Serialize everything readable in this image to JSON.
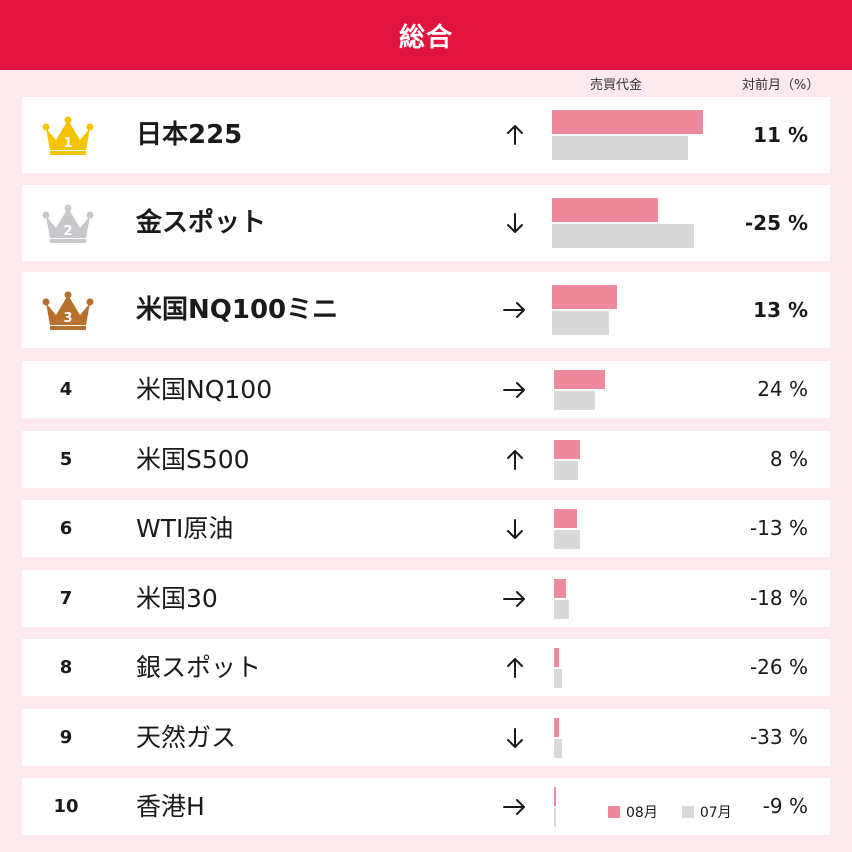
{
  "header": {
    "title": "総合"
  },
  "columns": {
    "volume": "売買代金",
    "mom": "対前月（%）"
  },
  "legend": {
    "current": "08月",
    "previous": "07月"
  },
  "colors": {
    "header": "#e0143c",
    "current_bar": "#ef8a9e",
    "previous_bar": "#d9d9d9",
    "gold": "#f5c400",
    "silver": "#c8c8cc",
    "bronze": "#b8702e"
  },
  "chart_data": {
    "type": "bar",
    "series": [
      {
        "name": "08月",
        "values": [
          100,
          70,
          43,
          34,
          17,
          15,
          8,
          3,
          3,
          1
        ]
      },
      {
        "name": "07月",
        "values": [
          90,
          94,
          38,
          27,
          16,
          17,
          10,
          5,
          5,
          1
        ]
      }
    ],
    "rows": [
      {
        "rank": "1",
        "name": "日本225",
        "trend": "up",
        "change": "11 %"
      },
      {
        "rank": "2",
        "name": "金スポット",
        "trend": "down",
        "change": "-25 %"
      },
      {
        "rank": "3",
        "name": "米国NQ100ミニ",
        "trend": "flat",
        "change": "13 %"
      },
      {
        "rank": "4",
        "name": "米国NQ100",
        "trend": "flat",
        "change": "24 %"
      },
      {
        "rank": "5",
        "name": "米国S500",
        "trend": "up",
        "change": "8 %"
      },
      {
        "rank": "6",
        "name": "WTI原油",
        "trend": "down",
        "change": "-13 %"
      },
      {
        "rank": "7",
        "name": "米国30",
        "trend": "flat",
        "change": "-18 %"
      },
      {
        "rank": "8",
        "name": "銀スポット",
        "trend": "up",
        "change": "-26 %"
      },
      {
        "rank": "9",
        "name": "天然ガス",
        "trend": "down",
        "change": "-33 %"
      },
      {
        "rank": "10",
        "name": "香港H",
        "trend": "flat",
        "change": "-9 %"
      }
    ]
  }
}
